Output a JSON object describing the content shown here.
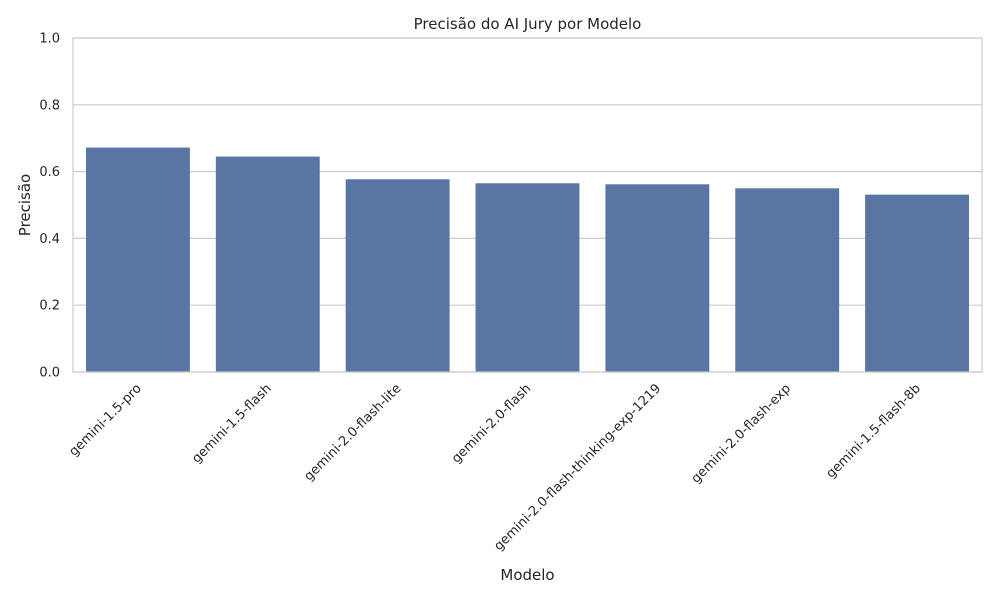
{
  "chart_data": {
    "type": "bar",
    "title": "Precisão do AI Jury por Modelo",
    "xlabel": "Modelo",
    "ylabel": "Precisão",
    "categories": [
      "gemini-1.5-pro",
      "gemini-1.5-flash",
      "gemini-2.0-flash-lite",
      "gemini-2.0-flash",
      "gemini-2.0-flash-thinking-exp-1219",
      "gemini-2.0-flash-exp",
      "gemini-1.5-flash-8b"
    ],
    "values": [
      0.672,
      0.645,
      0.577,
      0.565,
      0.562,
      0.55,
      0.531
    ],
    "ylim": [
      0,
      1.0
    ],
    "yticks": [
      "0.0",
      "0.2",
      "0.4",
      "0.6",
      "0.8",
      "1.0"
    ],
    "grid": true,
    "bar_color": "#5975a4",
    "grid_color": "#cccccc"
  }
}
